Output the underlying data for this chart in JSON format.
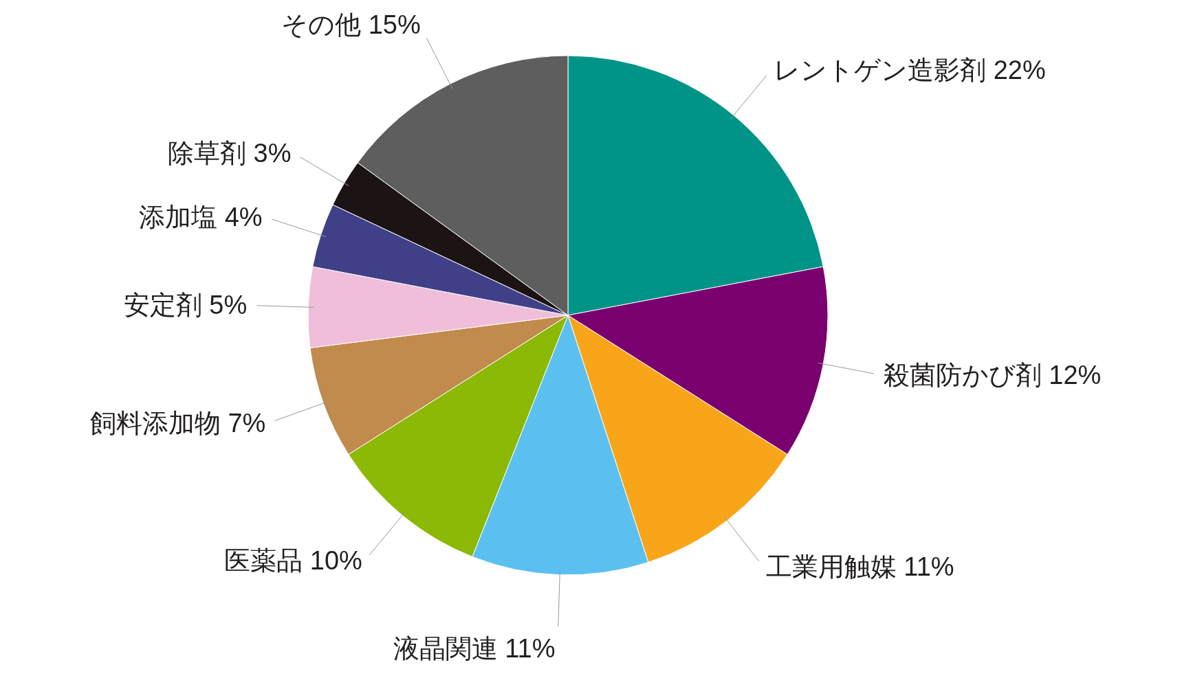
{
  "chart_data": {
    "type": "pie",
    "categories": [
      "レントゲン造影剤",
      "殺菌防かび剤",
      "工業用触媒",
      "液晶関連",
      "医薬品",
      "飼料添加物",
      "安定剤",
      "添加塩",
      "除草剤",
      "その他"
    ],
    "values": [
      22,
      12,
      11,
      11,
      10,
      7,
      5,
      4,
      3,
      15
    ],
    "value_labels": [
      "22%",
      "12%",
      "11%",
      "11%",
      "10%",
      "7%",
      "5%",
      "4%",
      "3%",
      "15%"
    ],
    "colors": [
      "#009488",
      "#7a006f",
      "#f9a51a",
      "#5bc0f0",
      "#8cb806",
      "#c08b4c",
      "#f0bed8",
      "#404089",
      "#1c1414",
      "#5e5e5e"
    ],
    "legend": false
  }
}
